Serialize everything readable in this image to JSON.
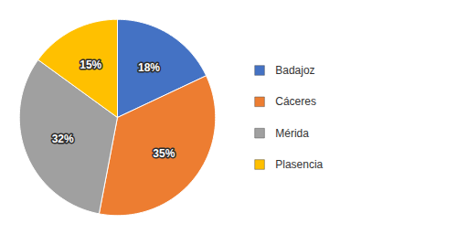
{
  "chart_data": {
    "type": "pie",
    "categories": [
      "Badajoz",
      "Cáceres",
      "Mérida",
      "Plasencia"
    ],
    "values": [
      18,
      35,
      32,
      15
    ],
    "value_labels": [
      "18%",
      "35%",
      "32%",
      "15%"
    ],
    "colors": [
      "#4472C4",
      "#ED7D31",
      "#A0A0A0",
      "#FFC000"
    ],
    "data_labels": true,
    "legend": "right"
  }
}
